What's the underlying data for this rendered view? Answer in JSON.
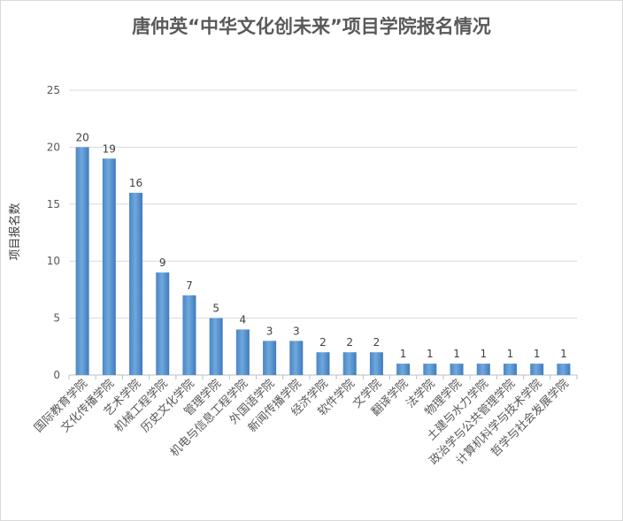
{
  "chart_data": {
    "type": "bar",
    "title": "唐仲英“中华文化创未来”项目学院报名情况",
    "ylabel": "项目报名数",
    "xlabel": "",
    "ylim": [
      0,
      25
    ],
    "yticks": [
      0,
      5,
      10,
      15,
      20,
      25
    ],
    "grid": true,
    "bar_color": "#5b9bd5",
    "categories": [
      "国际教育学院",
      "文化传播学院",
      "艺术学院",
      "机械工程学院",
      "历史文化学院",
      "管理学院",
      "机电与信息工程学院",
      "外国语学院",
      "新闻传播学院",
      "经济学院",
      "软件学院",
      "文学院",
      "翻译学院",
      "法学院",
      "物理学院",
      "土建与水力学院",
      "政治学与公共管理学院",
      "计算机科学与技术学院",
      "哲学与社会发展学院"
    ],
    "values": [
      20,
      19,
      16,
      9,
      7,
      5,
      4,
      3,
      3,
      2,
      2,
      2,
      1,
      1,
      1,
      1,
      1,
      1,
      1
    ]
  }
}
